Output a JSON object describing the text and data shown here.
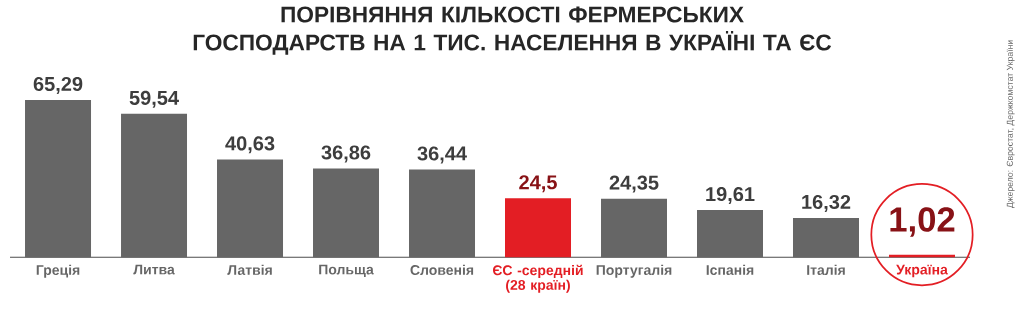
{
  "chart_data": {
    "type": "bar",
    "title": "ПОРІВНЯННЯ КІЛЬКОСТІ ФЕРМЕРСЬКИХ ГОСПОДАРСТВ НА 1 ТИС. НАСЕЛЕННЯ В УКРАЇНІ ТА ЄС",
    "categories": [
      "Греція",
      "Литва",
      "Латвія",
      "Польща",
      "Словенія",
      "ЄС -середній (28 країн)",
      "Португалія",
      "Іспанія",
      "Італія",
      "Україна"
    ],
    "values": [
      65.29,
      59.54,
      40.63,
      36.86,
      36.44,
      24.5,
      24.35,
      19.61,
      16.32,
      1.02
    ],
    "value_labels": [
      "65,29",
      "59,54",
      "40,63",
      "36,86",
      "36,44",
      "24,5",
      "24,35",
      "19,61",
      "16,32",
      "1,02"
    ],
    "colors": [
      "#666666",
      "#666666",
      "#666666",
      "#666666",
      "#666666",
      "#e31e24",
      "#666666",
      "#666666",
      "#666666",
      "#e31e24"
    ],
    "annotations": [
      "Джерело: Євростат, Держкомстат України"
    ],
    "grid": false
  }
}
